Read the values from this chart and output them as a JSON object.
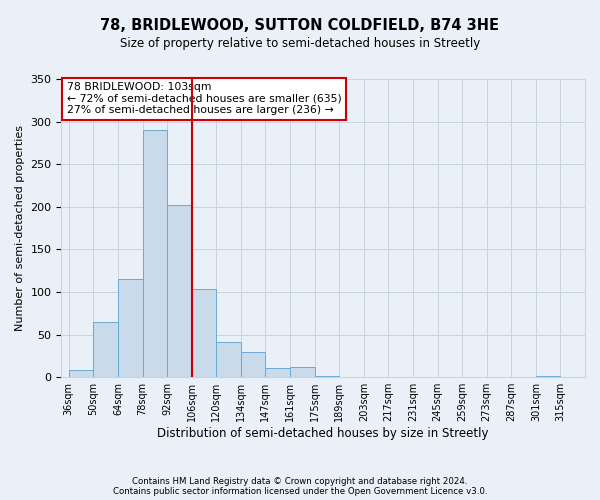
{
  "title": "78, BRIDLEWOOD, SUTTON COLDFIELD, B74 3HE",
  "subtitle": "Size of property relative to semi-detached houses in Streetly",
  "xlabel": "Distribution of semi-detached houses by size in Streetly",
  "ylabel": "Number of semi-detached properties",
  "bin_labels": [
    "36sqm",
    "50sqm",
    "64sqm",
    "78sqm",
    "92sqm",
    "106sqm",
    "120sqm",
    "134sqm",
    "147sqm",
    "161sqm",
    "175sqm",
    "189sqm",
    "203sqm",
    "217sqm",
    "231sqm",
    "245sqm",
    "259sqm",
    "273sqm",
    "287sqm",
    "301sqm",
    "315sqm"
  ],
  "bar_heights": [
    8,
    65,
    115,
    290,
    202,
    103,
    41,
    29,
    11,
    12,
    1,
    0,
    0,
    0,
    0,
    0,
    0,
    0,
    0,
    1,
    0
  ],
  "bar_color": "#c9daea",
  "bar_edge_color": "#6aaad4",
  "grid_color": "#c8d4e0",
  "background_color": "#eaf0f8",
  "vline_color": "#cc0000",
  "annotation_title": "78 BRIDLEWOOD: 103sqm",
  "annotation_line1": "← 72% of semi-detached houses are smaller (635)",
  "annotation_line2": "27% of semi-detached houses are larger (236) →",
  "annotation_box_color": "#ffffff",
  "annotation_box_edge": "#cc0000",
  "footer1": "Contains HM Land Registry data © Crown copyright and database right 2024.",
  "footer2": "Contains public sector information licensed under the Open Government Licence v3.0.",
  "ylim": [
    0,
    350
  ],
  "yticks": [
    0,
    50,
    100,
    150,
    200,
    250,
    300,
    350
  ],
  "n_bins": 21,
  "bin_width": 14
}
